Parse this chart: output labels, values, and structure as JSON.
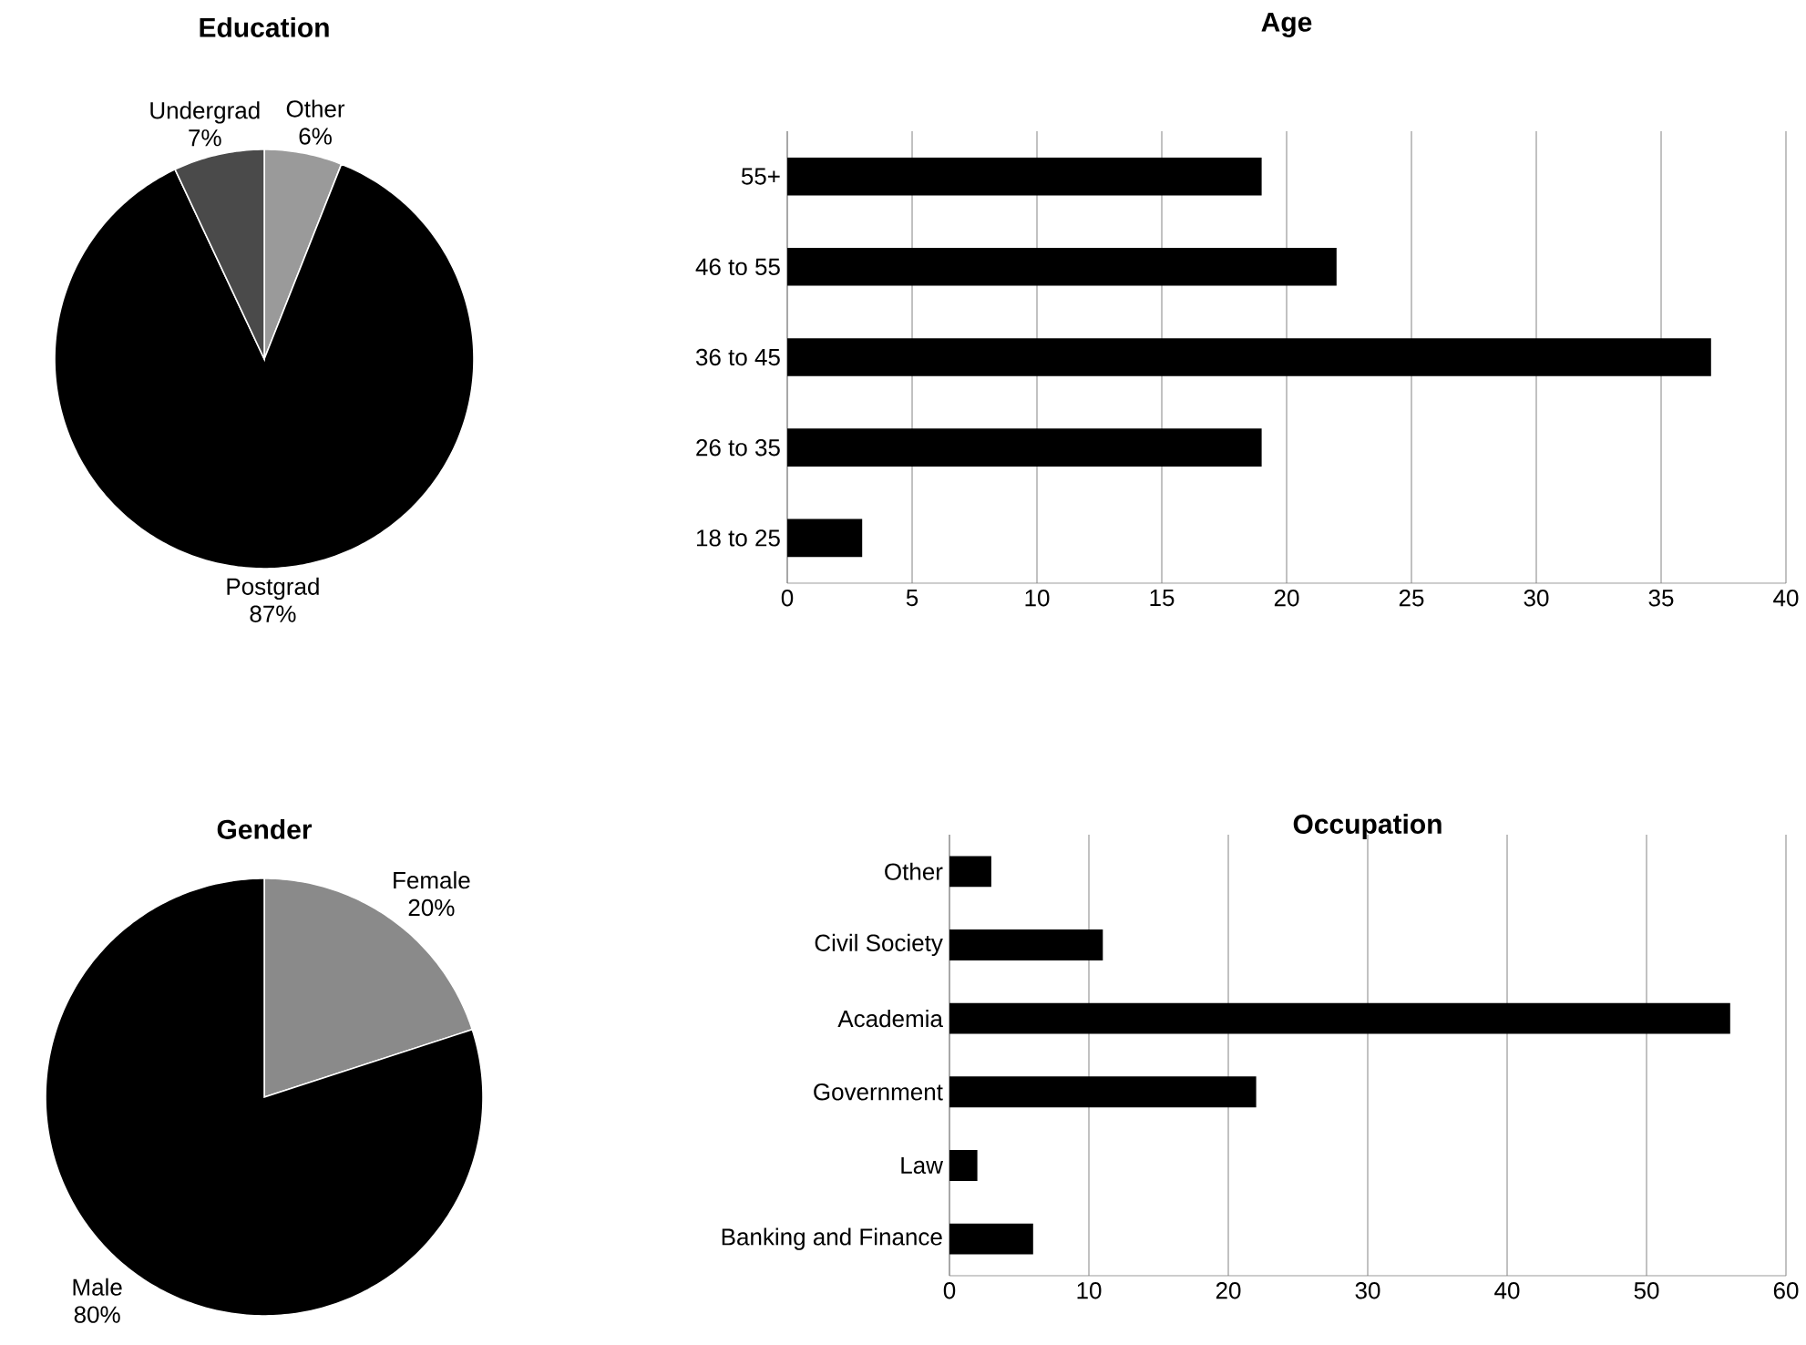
{
  "chart_data": [
    {
      "type": "pie",
      "title": "Education",
      "categories": [
        "Other",
        "Postgrad",
        "Undergrad"
      ],
      "values": [
        6,
        87,
        7
      ],
      "value_labels": [
        "6%",
        "87%",
        "7%"
      ],
      "colors": [
        "#9a9a9a",
        "#000000",
        "#4a4a4a"
      ]
    },
    {
      "type": "bar",
      "orientation": "horizontal",
      "title": "Age",
      "categories": [
        "55+",
        "46 to 55",
        "36 to 45",
        "26 to 35",
        "18 to 25"
      ],
      "values": [
        19,
        22,
        37,
        19,
        3
      ],
      "color": "#000000",
      "xlim": [
        0,
        40
      ],
      "xticks": [
        0,
        5,
        10,
        15,
        20,
        25,
        30,
        35,
        40
      ],
      "grid": "x"
    },
    {
      "type": "pie",
      "title": "Gender",
      "categories": [
        "Female",
        "Male"
      ],
      "values": [
        20,
        80
      ],
      "value_labels": [
        "20%",
        "80%"
      ],
      "colors": [
        "#8a8a8a",
        "#000000"
      ]
    },
    {
      "type": "bar",
      "orientation": "horizontal",
      "title": "Occupation",
      "categories": [
        "Other",
        "Civil Society",
        "Academia",
        "Government",
        "Law",
        "Banking and Finance"
      ],
      "values": [
        3,
        11,
        56,
        22,
        2,
        6
      ],
      "color": "#000000",
      "xlim": [
        0,
        60
      ],
      "xticks": [
        0,
        10,
        20,
        30,
        40,
        50,
        60
      ],
      "grid": "x"
    }
  ]
}
